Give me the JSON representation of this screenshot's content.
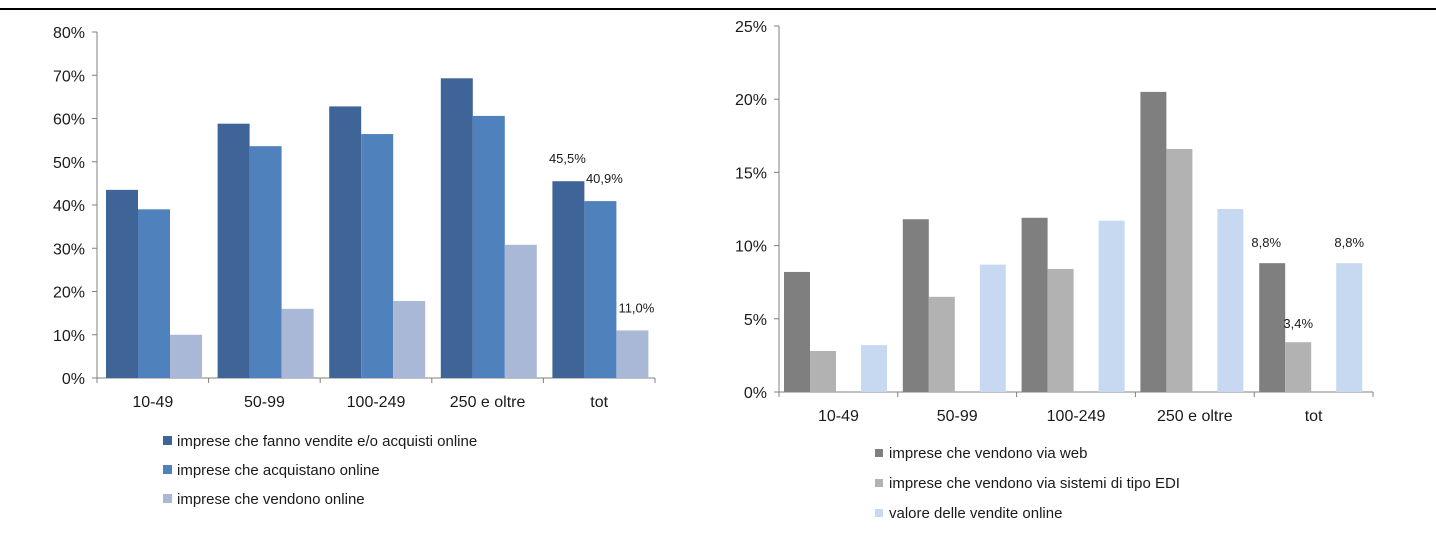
{
  "chart_data": [
    {
      "type": "bar",
      "categories": [
        "10-49",
        "50-99",
        "100-249",
        "250 e oltre",
        "tot"
      ],
      "series": [
        {
          "name": "imprese che fanno vendite e/o acquisti online",
          "values": [
            43.5,
            58.8,
            62.8,
            69.3,
            45.5
          ],
          "color": "#3f6598"
        },
        {
          "name": "imprese che acquistano online",
          "values": [
            39.0,
            53.6,
            56.4,
            60.6,
            40.9
          ],
          "color": "#4f81bd"
        },
        {
          "name": "imprese che vendono online",
          "values": [
            10.0,
            16.0,
            17.8,
            30.8,
            11.0
          ],
          "color": "#aab8d8"
        }
      ],
      "ylim": [
        0,
        80
      ],
      "yticks": [
        "0%",
        "10%",
        "20%",
        "30%",
        "40%",
        "50%",
        "60%",
        "70%",
        "80%"
      ],
      "data_labels": [
        {
          "series": 0,
          "category": 4,
          "text": "45,5%"
        },
        {
          "series": 1,
          "category": 4,
          "text": "40,9%"
        },
        {
          "series": 2,
          "category": 4,
          "text": "11,0%"
        }
      ],
      "legend": "bottom",
      "grid": false
    },
    {
      "type": "bar",
      "categories": [
        "10-49",
        "50-99",
        "100-249",
        "250 e oltre",
        "tot"
      ],
      "series": [
        {
          "name": "imprese che vendono via web",
          "values": [
            8.2,
            11.8,
            11.9,
            20.5,
            8.8
          ],
          "color": "#7f7f7f"
        },
        {
          "name": "imprese che vendono via sistemi di tipo EDI",
          "values": [
            2.8,
            6.5,
            8.4,
            16.6,
            3.4
          ],
          "color": "#b2b2b2"
        },
        {
          "name": "valore delle vendite online",
          "values": [
            3.2,
            8.7,
            11.7,
            12.5,
            8.8
          ],
          "color": "#c6d9f1"
        }
      ],
      "ylim": [
        0,
        25
      ],
      "yticks": [
        "0%",
        "5%",
        "10%",
        "15%",
        "20%",
        "25%"
      ],
      "data_labels": [
        {
          "series": 0,
          "category": 4,
          "text": "8,8%"
        },
        {
          "series": 1,
          "category": 4,
          "text": "3,4%"
        },
        {
          "series": 2,
          "category": 4,
          "text": "8,8%"
        }
      ],
      "legend": "bottom",
      "grid": false
    }
  ]
}
